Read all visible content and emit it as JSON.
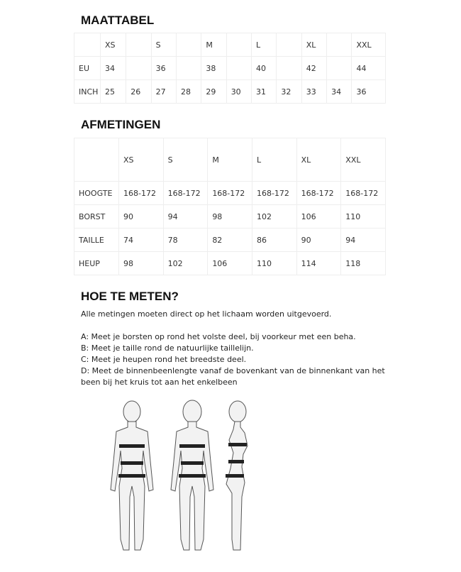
{
  "size_chart": {
    "title": "MAATTABEL",
    "header": [
      "",
      "XS",
      "",
      "S",
      "",
      "M",
      "",
      "L",
      "",
      "XL",
      "",
      "XXL"
    ],
    "rows": [
      [
        "EU",
        "34",
        "",
        "36",
        "",
        "38",
        "",
        "40",
        "",
        "42",
        "",
        "44"
      ],
      [
        "INCH",
        "25",
        "26",
        "27",
        "28",
        "29",
        "30",
        "31",
        "32",
        "33",
        "34",
        "36"
      ]
    ]
  },
  "measurements": {
    "title": "AFMETINGEN",
    "header": [
      "",
      "XS",
      "S",
      "M",
      "L",
      "XL",
      "XXL"
    ],
    "rows": [
      [
        "HOOGTE",
        "168-172",
        "168-172",
        "168-172",
        "168-172",
        "168-172",
        "168-172"
      ],
      [
        "BORST",
        "90",
        "94",
        "98",
        "102",
        "106",
        "110"
      ],
      [
        "TAILLE",
        "74",
        "78",
        "82",
        "86",
        "90",
        "94"
      ],
      [
        "HEUP",
        "98",
        "102",
        "106",
        "110",
        "114",
        "118"
      ]
    ]
  },
  "how_to": {
    "title": "HOE TE METEN?",
    "intro": "Alle metingen moeten direct op het lichaam worden uitgevoerd.",
    "steps": [
      "A: Meet je borsten op rond het volste deel, bij voorkeur met een beha.",
      "B: Meet je taille rond de natuurlijke taillelijn.",
      "C: Meet je heupen rond het breedste deel.",
      "D: Meet de binnenbeenlengte vanaf de bovenkant van de binnenkant van het been bij het kruis tot aan het enkelbeen"
    ]
  }
}
